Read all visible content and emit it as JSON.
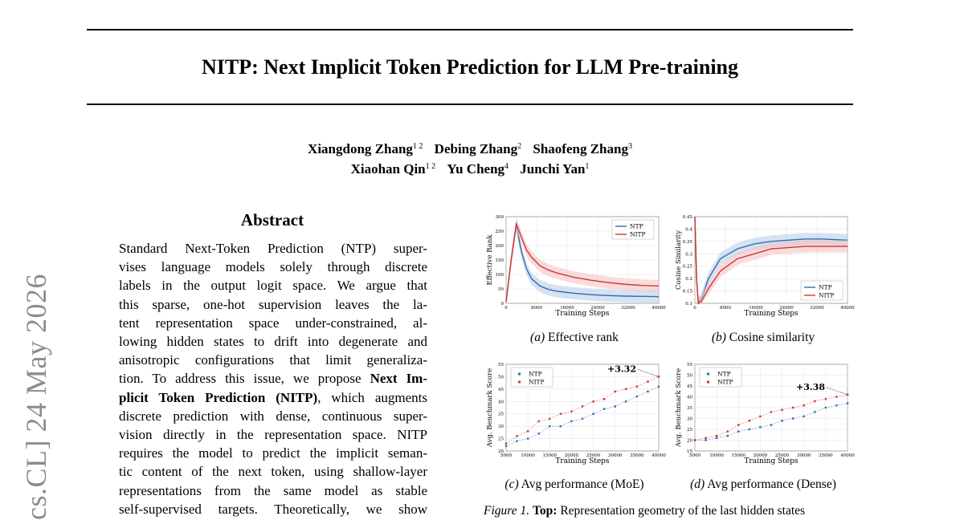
{
  "paper": {
    "title": "NITP: Next Implicit Token Prediction for LLM Pre-training",
    "authors_line1": [
      {
        "name": "Xiangdong Zhang",
        "aff": "1 2"
      },
      {
        "name": "Debing Zhang",
        "aff": "2"
      },
      {
        "name": "Shaofeng Zhang",
        "aff": "3"
      }
    ],
    "authors_line2": [
      {
        "name": "Xiaohan Qin",
        "aff": "1 2"
      },
      {
        "name": "Yu Cheng",
        "aff": "4"
      },
      {
        "name": "Junchi Yan",
        "aff": "1"
      }
    ],
    "arxiv_stamp": "cs.CL]  24 May 2026"
  },
  "abstract": {
    "heading": "Abstract",
    "lines": [
      "Standard Next-Token Prediction (NTP) super-",
      "vises language models solely through discrete",
      "labels in the output logit space.  We argue that",
      "this sparse, one-hot supervision leaves the la-",
      "tent representation space under-constrained, al-",
      "lowing hidden states to drift into degenerate and",
      "anisotropic configurations that limit generaliza-",
      "tion. To address this issue, we propose ",
      "plicit Token Prediction (NITP)",
      "discrete prediction with dense, continuous super-",
      "vision directly in the representation space. NITP",
      "requires the model to predict the implicit seman-",
      "tic content of the next token, using shallow-layer",
      "representations from the same model as stable",
      "self-supervised targets.  Theoretically, we show"
    ],
    "bold_1": "Next Im-",
    "after_bold_2": ", which augments"
  },
  "figure": {
    "caption_label": "Figure 1.",
    "caption_bold": "Top:",
    "caption_text": " Representation geometry of the last hidden states",
    "subcaptions": [
      {
        "label": "(a)",
        "text": " Effective rank"
      },
      {
        "label": "(b)",
        "text": " Cosine similarity"
      },
      {
        "label": "(c)",
        "text": " Avg performance (MoE)"
      },
      {
        "label": "(d)",
        "text": " Avg performance (Dense)"
      }
    ]
  },
  "colors": {
    "ntp": "#2f6db5",
    "nitp": "#d03535",
    "ntp_band": "#b9cfe8",
    "nitp_band": "#f3c3c3"
  },
  "chart_data": [
    {
      "id": "a",
      "type": "line",
      "xlabel": "Training Steps",
      "ylabel": "Effective Rank",
      "xlim": [
        0,
        90000
      ],
      "ylim": [
        0,
        300
      ],
      "xticks": [
        0,
        8000,
        16000,
        24000,
        32000,
        40000
      ],
      "xtick_labels": [
        "0",
        "8000",
        "16000",
        "24000",
        "32000",
        "40000"
      ],
      "yticks": [
        0,
        50,
        100,
        150,
        200,
        250,
        300
      ],
      "legend": "top-right",
      "grid": true,
      "series": [
        {
          "name": "NTP",
          "x": [
            0,
            3000,
            6000,
            9000,
            12000,
            15000,
            20000,
            25000,
            30000,
            40000,
            50000,
            60000,
            70000,
            80000,
            90000
          ],
          "values": [
            5,
            150,
            270,
            180,
            120,
            85,
            60,
            48,
            42,
            35,
            30,
            27,
            25,
            24,
            23
          ]
        },
        {
          "name": "NITP",
          "x": [
            0,
            3000,
            6000,
            9000,
            12000,
            15000,
            20000,
            25000,
            30000,
            40000,
            50000,
            60000,
            70000,
            80000,
            90000
          ],
          "values": [
            5,
            150,
            275,
            230,
            185,
            160,
            130,
            115,
            105,
            90,
            80,
            72,
            66,
            62,
            60
          ]
        }
      ]
    },
    {
      "id": "b",
      "type": "line",
      "xlabel": "Training Steps",
      "ylabel": "Cosine Similarity",
      "xlim": [
        0,
        90000
      ],
      "ylim": [
        0.1,
        0.45
      ],
      "xticks": [
        0,
        8000,
        16000,
        24000,
        32000,
        40000
      ],
      "xtick_labels": [
        "0",
        "8000",
        "16000",
        "24000",
        "32000",
        "40000"
      ],
      "yticks": [
        0.1,
        0.15,
        0.2,
        0.25,
        0.3,
        0.35,
        0.4,
        0.45
      ],
      "legend": "bottom-right",
      "grid": true,
      "series": [
        {
          "name": "NTP",
          "x": [
            0,
            1000,
            2000,
            4000,
            8000,
            15000,
            25000,
            35000,
            45000,
            55000,
            65000,
            75000,
            90000
          ],
          "values": [
            0.45,
            0.2,
            0.1,
            0.12,
            0.2,
            0.28,
            0.32,
            0.34,
            0.35,
            0.355,
            0.36,
            0.36,
            0.355
          ]
        },
        {
          "name": "NITP",
          "x": [
            0,
            1000,
            2000,
            4000,
            8000,
            15000,
            25000,
            35000,
            45000,
            55000,
            65000,
            75000,
            90000
          ],
          "values": [
            0.45,
            0.2,
            0.1,
            0.11,
            0.16,
            0.23,
            0.28,
            0.3,
            0.32,
            0.325,
            0.33,
            0.33,
            0.33
          ]
        }
      ]
    },
    {
      "id": "c",
      "type": "scatter",
      "xlabel": "Training Steps",
      "ylabel": "Avg. Benchmark Score",
      "xlim": [
        5000,
        40000
      ],
      "ylim": [
        20,
        55
      ],
      "xticks": [
        5000,
        10000,
        15000,
        20000,
        25000,
        30000,
        35000,
        40000
      ],
      "yticks": [
        20,
        25,
        30,
        35,
        40,
        45,
        50,
        55
      ],
      "legend": "top-left",
      "grid": true,
      "annotation": "+3.32",
      "series": [
        {
          "name": "NTP",
          "x": [
            5000,
            7500,
            10000,
            12500,
            15000,
            17500,
            20000,
            22500,
            25000,
            27500,
            30000,
            32500,
            35000,
            37500,
            40000
          ],
          "values": [
            22,
            24,
            25,
            27,
            30,
            30,
            32,
            33,
            35,
            37,
            38,
            40,
            42,
            44,
            46
          ]
        },
        {
          "name": "NITP",
          "x": [
            5000,
            7500,
            10000,
            12500,
            15000,
            17500,
            20000,
            22500,
            25000,
            27500,
            30000,
            32500,
            35000,
            37500,
            40000
          ],
          "values": [
            23,
            26,
            28,
            32,
            33,
            35,
            36,
            38,
            40,
            41,
            44,
            45,
            46,
            48,
            50
          ]
        }
      ]
    },
    {
      "id": "d",
      "type": "scatter",
      "xlabel": "Training Steps",
      "ylabel": "Avg. Benchmark Score",
      "xlim": [
        5000,
        40000
      ],
      "ylim": [
        15,
        55
      ],
      "xticks": [
        5000,
        10000,
        15000,
        20000,
        25000,
        30000,
        35000,
        40000
      ],
      "yticks": [
        15,
        20,
        25,
        30,
        35,
        40,
        45,
        50,
        55
      ],
      "legend": "top-left",
      "grid": true,
      "annotation": "+3.38",
      "series": [
        {
          "name": "NTP",
          "x": [
            5000,
            7500,
            10000,
            12500,
            15000,
            17500,
            20000,
            22500,
            25000,
            27500,
            30000,
            32500,
            35000,
            37500,
            40000
          ],
          "values": [
            20,
            20,
            21,
            22,
            24,
            25,
            26,
            27,
            29,
            30,
            31,
            33,
            35,
            36,
            37
          ]
        },
        {
          "name": "NITP",
          "x": [
            5000,
            7500,
            10000,
            12500,
            15000,
            17500,
            20000,
            22500,
            25000,
            27500,
            30000,
            32500,
            35000,
            37500,
            40000
          ],
          "values": [
            20,
            21,
            22,
            24,
            27,
            29,
            31,
            33,
            34,
            35,
            36,
            38,
            39,
            40,
            41
          ]
        }
      ]
    }
  ]
}
